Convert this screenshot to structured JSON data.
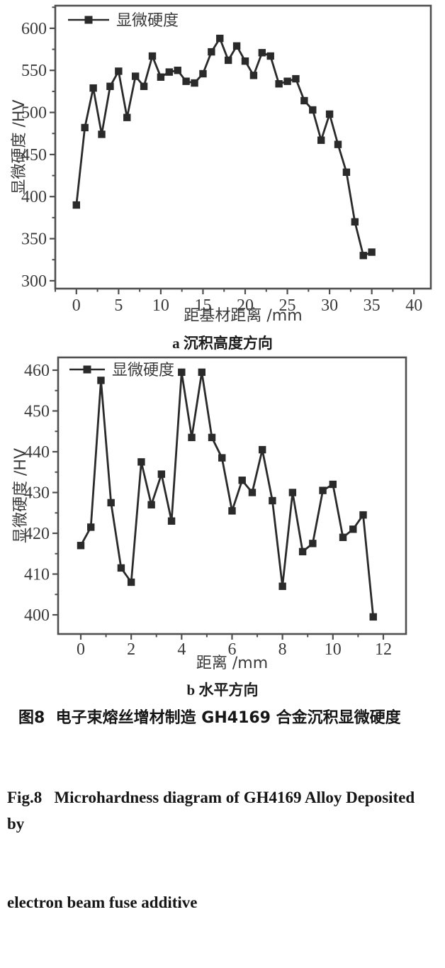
{
  "colors": {
    "line": "#2a2a2a",
    "frame": "#4f4f4f",
    "text": "#3a3a3a",
    "caption": "#161616"
  },
  "legend_label": "显微硬度",
  "figure": {
    "caption_zh": "图8  电子束熔丝增材制造 GH4169 合金沉积显微硬度",
    "caption_en_line1": "Fig.8   Microhardness diagram of GH4169 Alloy Deposited by",
    "caption_en_line2": "electron beam fuse additive"
  },
  "chart_data": [
    {
      "id": "a",
      "type": "line",
      "marker": "square",
      "grid": false,
      "legend": [
        "显微硬度"
      ],
      "legend_position": "top-left",
      "xlabel": "距基材距离 /mm",
      "ylabel": "显微硬度 /HV",
      "caption": "a 沉积高度方向",
      "xlim": [
        -2.5,
        42
      ],
      "ylim": [
        291,
        627
      ],
      "xticks": [
        0,
        5,
        10,
        15,
        20,
        25,
        30,
        35,
        40
      ],
      "yticks": [
        300,
        350,
        400,
        450,
        500,
        550,
        600
      ],
      "x_minor_step": 2.5,
      "y_minor_step": 25,
      "x": [
        0,
        1,
        2,
        3,
        4,
        5,
        6,
        7,
        8,
        9,
        10,
        11,
        12,
        13,
        14,
        15,
        16,
        17,
        18,
        19,
        20,
        21,
        22,
        23,
        24,
        25,
        26,
        27,
        28,
        29,
        30,
        31,
        32,
        33,
        34,
        35
      ],
      "y": [
        390,
        482,
        529,
        474,
        531,
        549,
        494,
        543,
        531,
        567,
        542,
        548,
        550,
        537,
        535,
        546,
        572,
        588,
        562,
        579,
        561,
        544,
        571,
        567,
        534,
        537,
        540,
        514,
        503,
        467,
        498,
        462,
        429,
        370,
        330,
        334
      ]
    },
    {
      "id": "b",
      "type": "line",
      "marker": "square",
      "grid": false,
      "legend": [
        "显微硬度"
      ],
      "legend_position": "top-left",
      "xlabel": "距离 /mm",
      "ylabel": "显微硬度 /HV",
      "caption": "b 水平方向",
      "xlim": [
        -0.9,
        12.9
      ],
      "ylim": [
        395.3,
        463.1
      ],
      "xticks": [
        0,
        2,
        4,
        6,
        8,
        10,
        12
      ],
      "yticks": [
        400,
        410,
        420,
        430,
        440,
        450,
        460
      ],
      "x_minor_step": 1,
      "y_minor_step": 5,
      "x": [
        0,
        0.4,
        0.8,
        1.2,
        1.6,
        2,
        2.4,
        2.8,
        3.2,
        3.6,
        4,
        4.4,
        4.8,
        5.2,
        5.6,
        6,
        6.4,
        6.8,
        7.2,
        7.6,
        8,
        8.4,
        8.8,
        9.2,
        9.6,
        10,
        10.4,
        10.8,
        11.2,
        11.6
      ],
      "y": [
        417,
        421.5,
        457.5,
        427.5,
        411.5,
        408,
        437.5,
        427,
        434.5,
        423,
        459.5,
        443.5,
        459.5,
        443.5,
        438.5,
        425.5,
        433,
        430,
        440.5,
        428,
        407,
        430,
        415.5,
        417.5,
        430.5,
        432,
        419,
        421,
        424.5,
        399.5
      ]
    }
  ]
}
